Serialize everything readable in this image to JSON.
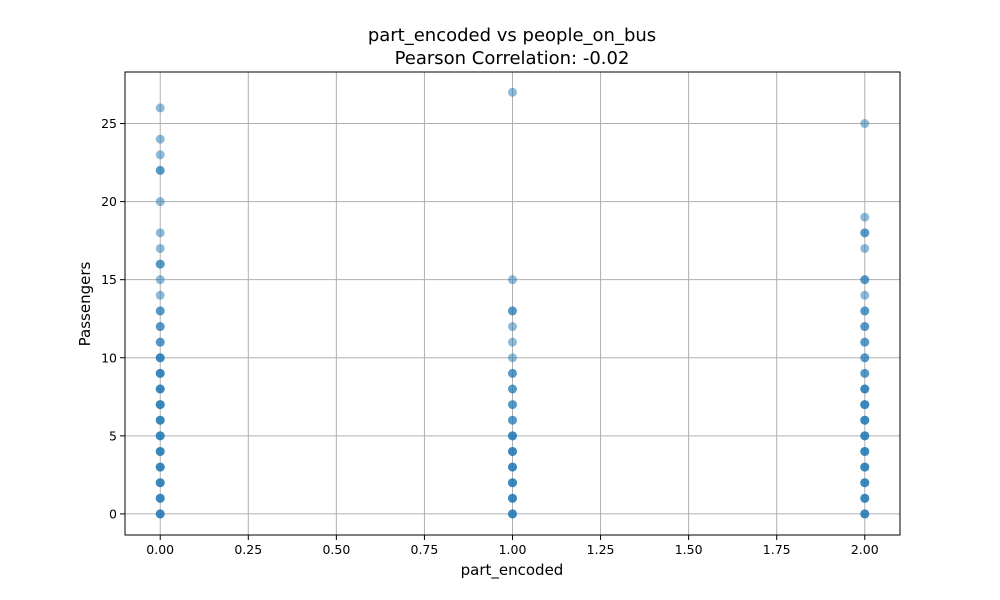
{
  "chart_data": {
    "type": "scatter",
    "title": "part_encoded vs people_on_bus",
    "subtitle": "Pearson Correlation: -0.02",
    "xlabel": "part_encoded",
    "ylabel": "Passengers",
    "xlim": [
      -0.1,
      2.1
    ],
    "ylim": [
      -1.35,
      28.3
    ],
    "x_ticks": [
      0,
      0.25,
      0.5,
      0.75,
      1,
      1.25,
      1.5,
      1.75,
      2
    ],
    "x_tick_labels": [
      "0.00",
      "0.25",
      "0.50",
      "0.75",
      "1.00",
      "1.25",
      "1.50",
      "1.75",
      "2.00"
    ],
    "y_ticks": [
      0,
      5,
      10,
      15,
      20,
      25
    ],
    "y_tick_labels": [
      "0",
      "5",
      "10",
      "15",
      "20",
      "25"
    ],
    "grid": true,
    "color": "#1f77b4",
    "series": [
      {
        "points": [
          [
            0,
            0
          ],
          [
            0,
            0
          ],
          [
            0,
            0
          ],
          [
            0,
            1
          ],
          [
            0,
            1
          ],
          [
            0,
            1
          ],
          [
            0,
            2
          ],
          [
            0,
            2
          ],
          [
            0,
            2
          ],
          [
            0,
            3
          ],
          [
            0,
            3
          ],
          [
            0,
            3
          ],
          [
            0,
            4
          ],
          [
            0,
            4
          ],
          [
            0,
            4
          ],
          [
            0,
            5
          ],
          [
            0,
            5
          ],
          [
            0,
            5
          ],
          [
            0,
            6
          ],
          [
            0,
            6
          ],
          [
            0,
            6
          ],
          [
            0,
            7
          ],
          [
            0,
            7
          ],
          [
            0,
            7
          ],
          [
            0,
            8
          ],
          [
            0,
            8
          ],
          [
            0,
            8
          ],
          [
            0,
            9
          ],
          [
            0,
            9
          ],
          [
            0,
            9
          ],
          [
            0,
            10
          ],
          [
            0,
            10
          ],
          [
            0,
            10
          ],
          [
            0,
            11
          ],
          [
            0,
            11
          ],
          [
            0,
            12
          ],
          [
            0,
            12
          ],
          [
            0,
            13
          ],
          [
            0,
            13
          ],
          [
            0,
            14
          ],
          [
            0,
            15
          ],
          [
            0,
            16
          ],
          [
            0,
            16
          ],
          [
            0,
            17
          ],
          [
            0,
            18
          ],
          [
            0,
            20
          ],
          [
            0,
            22
          ],
          [
            0,
            22
          ],
          [
            0,
            23
          ],
          [
            0,
            24
          ],
          [
            0,
            26
          ],
          [
            1,
            0
          ],
          [
            1,
            0
          ],
          [
            1,
            0
          ],
          [
            1,
            1
          ],
          [
            1,
            1
          ],
          [
            1,
            1
          ],
          [
            1,
            2
          ],
          [
            1,
            2
          ],
          [
            1,
            2
          ],
          [
            1,
            3
          ],
          [
            1,
            3
          ],
          [
            1,
            3
          ],
          [
            1,
            4
          ],
          [
            1,
            4
          ],
          [
            1,
            4
          ],
          [
            1,
            5
          ],
          [
            1,
            5
          ],
          [
            1,
            5
          ],
          [
            1,
            6
          ],
          [
            1,
            6
          ],
          [
            1,
            7
          ],
          [
            1,
            7
          ],
          [
            1,
            8
          ],
          [
            1,
            8
          ],
          [
            1,
            9
          ],
          [
            1,
            9
          ],
          [
            1,
            10
          ],
          [
            1,
            11
          ],
          [
            1,
            12
          ],
          [
            1,
            13
          ],
          [
            1,
            13
          ],
          [
            1,
            15
          ],
          [
            1,
            27
          ],
          [
            2,
            0
          ],
          [
            2,
            0
          ],
          [
            2,
            0
          ],
          [
            2,
            1
          ],
          [
            2,
            1
          ],
          [
            2,
            1
          ],
          [
            2,
            2
          ],
          [
            2,
            2
          ],
          [
            2,
            2
          ],
          [
            2,
            3
          ],
          [
            2,
            3
          ],
          [
            2,
            3
          ],
          [
            2,
            4
          ],
          [
            2,
            4
          ],
          [
            2,
            4
          ],
          [
            2,
            5
          ],
          [
            2,
            5
          ],
          [
            2,
            5
          ],
          [
            2,
            6
          ],
          [
            2,
            6
          ],
          [
            2,
            6
          ],
          [
            2,
            7
          ],
          [
            2,
            7
          ],
          [
            2,
            7
          ],
          [
            2,
            8
          ],
          [
            2,
            8
          ],
          [
            2,
            8
          ],
          [
            2,
            9
          ],
          [
            2,
            9
          ],
          [
            2,
            10
          ],
          [
            2,
            10
          ],
          [
            2,
            11
          ],
          [
            2,
            11
          ],
          [
            2,
            12
          ],
          [
            2,
            12
          ],
          [
            2,
            13
          ],
          [
            2,
            13
          ],
          [
            2,
            14
          ],
          [
            2,
            15
          ],
          [
            2,
            15
          ],
          [
            2,
            17
          ],
          [
            2,
            18
          ],
          [
            2,
            18
          ],
          [
            2,
            19
          ],
          [
            2,
            25
          ]
        ]
      }
    ]
  }
}
